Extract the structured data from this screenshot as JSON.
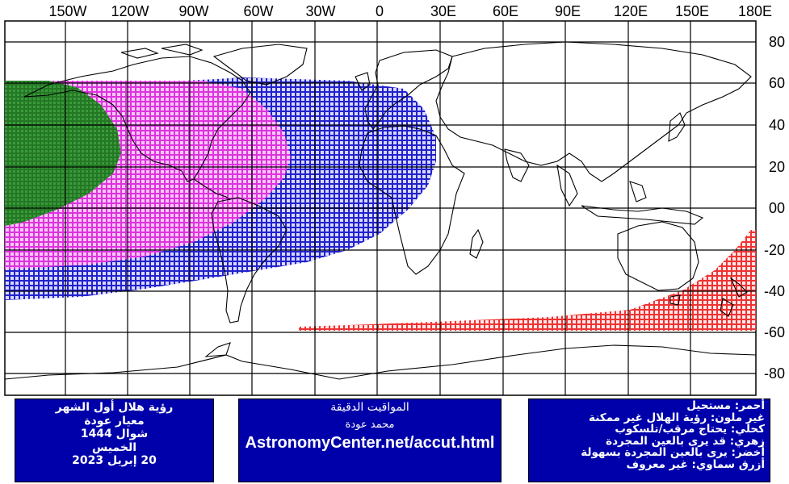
{
  "map": {
    "longitude_labels": [
      "150W",
      "120W",
      "90W",
      "60W",
      "30W",
      "0",
      "30E",
      "60E",
      "90E",
      "120E",
      "150E",
      "180E"
    ],
    "latitude_labels": [
      "80",
      "60",
      "40",
      "20",
      "00",
      "-20",
      "-40",
      "-60",
      "-80"
    ],
    "zones": {
      "green": "#2f8f2f",
      "pink": "#e860e8",
      "blue": "#2222cc",
      "red": "#ee3333"
    },
    "land_color": "#000000",
    "grid_color": "#000000"
  },
  "panels": {
    "left": {
      "lines": [
        "رؤية هلال أول الشهر",
        "معيار عودة",
        "شوال 1444",
        "الخميس",
        "20 إبريل 2023"
      ]
    },
    "middle": {
      "line1": "المواقيت الدقيقة",
      "line2": "محمد عودة",
      "line3": "AstronomyCenter.net/accut.html"
    },
    "right": {
      "lines": [
        "أحمر: مستحيل",
        "غير ملون: رؤية الهلال غير ممكنة",
        "كحلي: يحتاج مرقب/تلسكوب",
        "زهري: قد يرى بالعين المجردة",
        "أخضر: يرى بالعين المجردة بسهولة",
        "أزرق سماوي: غير معروف"
      ]
    }
  }
}
